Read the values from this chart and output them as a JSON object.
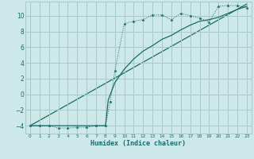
{
  "bg_color": "#cce8e8",
  "grid_color": "#aac8c8",
  "line_color": "#1a6b6b",
  "xlabel": "Humidex (Indice chaleur)",
  "xlim": [
    -0.5,
    23.5
  ],
  "ylim": [
    -5.0,
    11.8
  ],
  "yticks": [
    -4,
    -2,
    0,
    2,
    4,
    6,
    8,
    10
  ],
  "xticks": [
    0,
    1,
    2,
    3,
    4,
    5,
    6,
    7,
    8,
    9,
    10,
    11,
    12,
    13,
    14,
    15,
    16,
    17,
    18,
    19,
    20,
    21,
    22,
    23
  ],
  "line1_x": [
    0,
    1,
    2,
    3,
    4,
    5,
    6,
    7,
    8,
    8.5,
    9,
    10,
    11,
    12,
    13,
    14,
    15,
    16,
    17,
    18,
    19,
    20,
    21,
    22,
    23
  ],
  "line1_y": [
    -4,
    -4,
    -4,
    -4.3,
    -4.3,
    -4.2,
    -4.2,
    -4,
    -4,
    -1,
    3,
    9,
    9.3,
    9.5,
    10.1,
    10.1,
    9.5,
    10.3,
    10,
    9.7,
    9.2,
    11.2,
    11.3,
    11.3,
    11.0
  ],
  "line2_x": [
    0,
    23
  ],
  "line2_y": [
    -4,
    11.5
  ],
  "line3_x": [
    0,
    8,
    8.3,
    9,
    10,
    11,
    12,
    13,
    14,
    15,
    16,
    17,
    18,
    19,
    20,
    21,
    22,
    23
  ],
  "line3_y": [
    -4,
    -4,
    -0.7,
    1.5,
    3.2,
    4.5,
    5.5,
    6.2,
    7.0,
    7.5,
    8.2,
    8.8,
    9.3,
    9.5,
    9.8,
    10.3,
    10.8,
    11.2
  ]
}
